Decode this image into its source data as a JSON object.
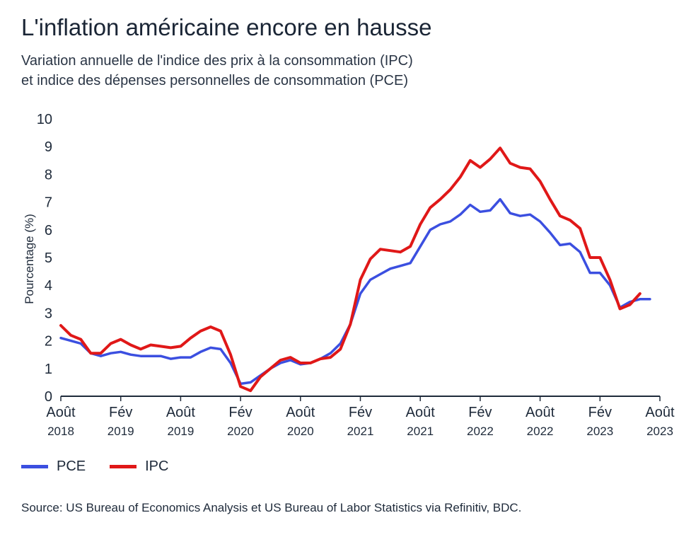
{
  "title": "L'inflation américaine encore en hausse",
  "subtitle": {
    "line1": "Variation annuelle de l'indice des prix à la consommation (IPC)",
    "line2": "et indice des dépenses personnelles de consommation (PCE)"
  },
  "source": "Source: US Bureau of Economics Analysis et US Bureau of Labor Statistics via Refinitiv, BDC.",
  "chart_data": {
    "type": "line",
    "title": "L'inflation américaine encore en hausse",
    "ylabel": "Pourcentage (%)",
    "xlabel": "",
    "ylim": [
      0,
      10
    ],
    "yticks": [
      "0",
      "1",
      "2",
      "3",
      "4",
      "5",
      "6",
      "7",
      "8",
      "9",
      "10"
    ],
    "x_ticks": [
      {
        "month": "Août",
        "year": "2018"
      },
      {
        "month": "Fév",
        "year": "2019"
      },
      {
        "month": "Août",
        "year": "2019"
      },
      {
        "month": "Fév",
        "year": "2020"
      },
      {
        "month": "Août",
        "year": "2020"
      },
      {
        "month": "Fév",
        "year": "2021"
      },
      {
        "month": "Août",
        "year": "2021"
      },
      {
        "month": "Fév",
        "year": "2022"
      },
      {
        "month": "Août",
        "year": "2022"
      },
      {
        "month": "Fév",
        "year": "2023"
      },
      {
        "month": "Août",
        "year": "2023"
      }
    ],
    "x_start": "2018-08",
    "x_end": "2023-08",
    "grid": false,
    "legend_position": "bottom-left",
    "series": [
      {
        "name": "PCE",
        "color": "#3b4fe0",
        "start": "2018-08",
        "values": [
          2.1,
          2.0,
          1.9,
          1.55,
          1.45,
          1.55,
          1.6,
          1.5,
          1.45,
          1.45,
          1.45,
          1.35,
          1.4,
          1.4,
          1.6,
          1.75,
          1.7,
          1.2,
          0.45,
          0.5,
          0.75,
          1.0,
          1.2,
          1.3,
          1.15,
          1.2,
          1.35,
          1.55,
          1.9,
          2.6,
          3.7,
          4.2,
          4.4,
          4.6,
          4.7,
          4.8,
          5.4,
          6.0,
          6.2,
          6.3,
          6.55,
          6.9,
          6.65,
          6.7,
          7.1,
          6.6,
          6.5,
          6.55,
          6.3,
          5.9,
          5.45,
          5.5,
          5.2,
          4.45,
          4.45,
          4.0,
          3.2,
          3.4,
          3.5,
          3.5
        ]
      },
      {
        "name": "IPC",
        "color": "#e01818",
        "start": "2018-08",
        "values": [
          2.55,
          2.2,
          2.05,
          1.55,
          1.55,
          1.9,
          2.05,
          1.85,
          1.7,
          1.85,
          1.8,
          1.75,
          1.8,
          2.1,
          2.35,
          2.5,
          2.35,
          1.5,
          0.35,
          0.2,
          0.7,
          1.0,
          1.3,
          1.4,
          1.2,
          1.2,
          1.35,
          1.4,
          1.7,
          2.6,
          4.2,
          4.95,
          5.3,
          5.25,
          5.2,
          5.4,
          6.2,
          6.8,
          7.1,
          7.45,
          7.9,
          8.5,
          8.25,
          8.55,
          8.95,
          8.4,
          8.25,
          8.2,
          7.75,
          7.1,
          6.5,
          6.35,
          6.05,
          5.0,
          5.0,
          4.2,
          3.15,
          3.3,
          3.7
        ]
      }
    ]
  },
  "legend": {
    "pce_label": "PCE",
    "ipc_label": "IPC",
    "pce_color": "#3b4fe0",
    "ipc_color": "#e01818"
  }
}
